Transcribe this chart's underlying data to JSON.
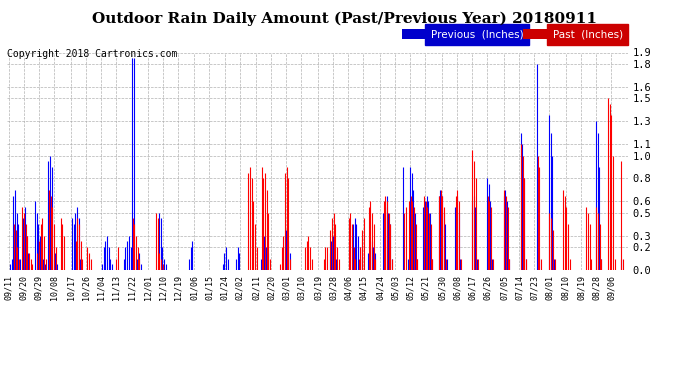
{
  "title": "Outdoor Rain Daily Amount (Past/Previous Year) 20180911",
  "copyright": "Copyright 2018 Cartronics.com",
  "legend_previous": "Previous  (Inches)",
  "legend_past": "Past  (Inches)",
  "legend_prev_bg": "#0000CC",
  "legend_past_bg": "#CC0000",
  "prev_line_color": "#0000FF",
  "past_line_color": "#FF0000",
  "ylim": [
    0.0,
    1.9
  ],
  "yticks": [
    0.0,
    0.2,
    0.3,
    0.5,
    0.6,
    0.8,
    1.0,
    1.1,
    1.3,
    1.5,
    1.6,
    1.8,
    1.9
  ],
  "background_color": "#ffffff",
  "grid_color": "#aaaaaa",
  "title_fontsize": 11,
  "copyright_fontsize": 7,
  "tick_labels": [
    "09/11",
    "09/20",
    "09/29",
    "10/08",
    "10/17",
    "10/26",
    "11/04",
    "11/13",
    "11/22",
    "12/01",
    "12/10",
    "12/19",
    "01/06",
    "01/15",
    "01/24",
    "02/02",
    "02/11",
    "02/20",
    "03/01",
    "03/10",
    "03/19",
    "03/28",
    "04/06",
    "04/15",
    "04/24",
    "05/03",
    "05/12",
    "05/21",
    "05/30",
    "06/08",
    "06/17",
    "06/26",
    "07/05",
    "07/14",
    "07/23",
    "08/01",
    "08/10",
    "08/19",
    "08/28",
    "09/06"
  ],
  "num_days": 366,
  "previous_data": [
    0.0,
    0.05,
    0.1,
    0.65,
    0.7,
    0.5,
    0.4,
    0.1,
    0.0,
    0.45,
    0.55,
    0.3,
    0.15,
    0.0,
    0.0,
    0.0,
    0.6,
    0.5,
    0.4,
    0.3,
    0.2,
    0.1,
    0.05,
    0.0,
    0.95,
    1.0,
    0.9,
    0.1,
    0.15,
    0.05,
    0.0,
    0.0,
    0.0,
    0.0,
    0.0,
    0.0,
    0.0,
    0.0,
    0.45,
    0.4,
    0.5,
    0.55,
    0.45,
    0.1,
    0.0,
    0.0,
    0.0,
    0.0,
    0.0,
    0.0,
    0.0,
    0.0,
    0.0,
    0.0,
    0.0,
    0.0,
    0.05,
    0.2,
    0.25,
    0.3,
    0.2,
    0.1,
    0.05,
    0.0,
    0.0,
    0.0,
    0.0,
    0.0,
    0.0,
    0.1,
    0.2,
    0.25,
    0.3,
    0.2,
    1.85,
    1.85,
    0.0,
    0.1,
    0.15,
    0.05,
    0.0,
    0.0,
    0.0,
    0.0,
    0.0,
    0.0,
    0.0,
    0.0,
    0.0,
    0.0,
    0.5,
    0.45,
    0.2,
    0.1,
    0.05,
    0.0,
    0.0,
    0.0,
    0.0,
    0.0,
    0.0,
    0.0,
    0.0,
    0.0,
    0.0,
    0.0,
    0.0,
    0.0,
    0.1,
    0.2,
    0.25,
    0.0,
    0.0,
    0.0,
    0.0,
    0.0,
    0.0,
    0.0,
    0.0,
    0.0,
    0.0,
    0.0,
    0.0,
    0.0,
    0.0,
    0.0,
    0.0,
    0.0,
    0.05,
    0.15,
    0.2,
    0.1,
    0.0,
    0.0,
    0.0,
    0.0,
    0.1,
    0.2,
    0.15,
    0.0,
    0.0,
    0.0,
    0.0,
    0.0,
    0.0,
    0.0,
    0.0,
    0.0,
    0.0,
    0.0,
    0.0,
    0.1,
    0.2,
    0.3,
    0.2,
    0.15,
    0.0,
    0.0,
    0.0,
    0.0,
    0.0,
    0.0,
    0.0,
    0.0,
    0.0,
    0.3,
    0.35,
    0.25,
    0.15,
    0.0,
    0.0,
    0.0,
    0.0,
    0.0,
    0.0,
    0.0,
    0.0,
    0.0,
    0.0,
    0.0,
    0.0,
    0.0,
    0.0,
    0.0,
    0.0,
    0.0,
    0.0,
    0.0,
    0.0,
    0.0,
    0.0,
    0.0,
    0.15,
    0.25,
    0.3,
    0.2,
    0.1,
    0.0,
    0.0,
    0.0,
    0.0,
    0.0,
    0.0,
    0.0,
    0.0,
    0.0,
    0.4,
    0.45,
    0.4,
    0.3,
    0.2,
    0.1,
    0.0,
    0.0,
    0.0,
    0.15,
    0.2,
    0.25,
    0.2,
    0.15,
    0.0,
    0.0,
    0.0,
    0.0,
    0.5,
    0.55,
    0.65,
    0.5,
    0.4,
    0.1,
    0.0,
    0.0,
    0.0,
    0.0,
    0.0,
    0.0,
    0.9,
    0.0,
    0.0,
    0.1,
    0.9,
    0.85,
    0.7,
    0.5,
    0.1,
    0.0,
    0.0,
    0.0,
    0.55,
    0.6,
    0.65,
    0.6,
    0.5,
    0.1,
    0.0,
    0.0,
    0.0,
    0.65,
    0.7,
    0.65,
    0.5,
    0.4,
    0.1,
    0.0,
    0.0,
    0.0,
    0.0,
    0.55,
    0.65,
    0.5,
    0.1,
    0.0,
    0.0,
    0.0,
    0.0,
    0.0,
    0.0,
    0.6,
    0.65,
    0.55,
    0.1,
    0.0,
    0.0,
    0.0,
    0.0,
    0.0,
    0.8,
    0.75,
    0.6,
    0.1,
    0.0,
    0.0,
    0.0,
    0.0,
    0.0,
    0.0,
    0.65,
    0.7,
    0.6,
    0.1,
    0.0,
    0.0,
    0.0,
    0.0,
    0.0,
    0.0,
    1.2,
    1.1,
    0.8,
    0.1,
    0.0,
    0.0,
    0.0,
    0.0,
    0.0,
    0.0,
    1.8,
    0.1,
    0.0,
    0.0,
    0.0,
    0.0,
    0.0,
    1.35,
    1.2,
    1.0,
    0.1,
    0.0,
    0.0,
    0.0,
    0.0,
    0.0,
    0.0,
    0.0,
    0.0,
    0.0,
    0.0,
    0.0,
    0.0,
    0.0,
    0.0,
    0.0,
    0.0,
    0.0,
    0.0,
    0.0,
    0.0,
    0.0,
    0.0,
    0.0,
    0.0,
    1.3,
    1.2,
    0.9,
    0.1,
    0.0,
    0.0,
    0.0,
    0.0,
    0.0,
    0.0,
    0.0,
    0.0,
    0.0,
    0.0,
    0.0,
    0.1,
    0.0,
    0.0,
    0.0
  ],
  "past_data": [
    0.0,
    0.0,
    0.0,
    0.4,
    0.35,
    0.2,
    0.1,
    0.0,
    0.55,
    0.5,
    0.4,
    0.3,
    0.15,
    0.1,
    0.05,
    0.0,
    0.0,
    0.15,
    0.25,
    0.4,
    0.45,
    0.3,
    0.1,
    0.0,
    0.7,
    0.65,
    0.55,
    0.4,
    0.2,
    0.0,
    0.0,
    0.45,
    0.4,
    0.3,
    0.0,
    0.0,
    0.0,
    0.0,
    0.0,
    0.0,
    0.25,
    0.45,
    0.4,
    0.25,
    0.1,
    0.0,
    0.0,
    0.2,
    0.15,
    0.1,
    0.0,
    0.0,
    0.0,
    0.0,
    0.0,
    0.0,
    0.0,
    0.0,
    0.0,
    0.0,
    0.0,
    0.0,
    0.0,
    0.0,
    0.1,
    0.2,
    0.0,
    0.0,
    0.0,
    0.0,
    0.0,
    0.0,
    0.0,
    0.0,
    0.45,
    0.4,
    0.3,
    0.2,
    0.1,
    0.0,
    0.0,
    0.0,
    0.0,
    0.0,
    0.0,
    0.0,
    0.0,
    0.0,
    0.5,
    0.45,
    0.15,
    0.1,
    0.05,
    0.0,
    0.0,
    0.0,
    0.0,
    0.0,
    0.0,
    0.0,
    0.0,
    0.0,
    0.0,
    0.0,
    0.0,
    0.0,
    0.0,
    0.0,
    0.0,
    0.0,
    0.0,
    0.0,
    0.0,
    0.0,
    0.0,
    0.0,
    0.0,
    0.0,
    0.0,
    0.0,
    0.0,
    0.0,
    0.0,
    0.0,
    0.0,
    0.0,
    0.0,
    0.0,
    0.0,
    0.0,
    0.0,
    0.0,
    0.0,
    0.0,
    0.0,
    0.0,
    0.0,
    0.0,
    0.0,
    0.0,
    0.0,
    0.0,
    0.0,
    0.85,
    0.9,
    0.8,
    0.6,
    0.4,
    0.2,
    0.0,
    0.0,
    0.9,
    0.8,
    0.85,
    0.7,
    0.5,
    0.1,
    0.0,
    0.0,
    0.0,
    0.0,
    0.0,
    0.05,
    0.2,
    0.3,
    0.85,
    0.9,
    0.8,
    0.1,
    0.0,
    0.0,
    0.0,
    0.0,
    0.0,
    0.0,
    0.0,
    0.0,
    0.2,
    0.25,
    0.3,
    0.2,
    0.1,
    0.0,
    0.0,
    0.0,
    0.0,
    0.0,
    0.0,
    0.1,
    0.2,
    0.2,
    0.0,
    0.35,
    0.45,
    0.5,
    0.4,
    0.2,
    0.1,
    0.0,
    0.0,
    0.0,
    0.0,
    0.0,
    0.45,
    0.5,
    0.4,
    0.2,
    0.1,
    0.0,
    0.1,
    0.2,
    0.35,
    0.45,
    0.0,
    0.0,
    0.55,
    0.6,
    0.5,
    0.4,
    0.1,
    0.0,
    0.0,
    0.0,
    0.0,
    0.6,
    0.65,
    0.6,
    0.5,
    0.4,
    0.1,
    0.0,
    0.0,
    0.0,
    0.0,
    0.0,
    0.0,
    0.5,
    0.55,
    0.0,
    0.6,
    0.65,
    0.6,
    0.55,
    0.4,
    0.1,
    0.0,
    0.0,
    0.0,
    0.65,
    0.6,
    0.55,
    0.5,
    0.4,
    0.1,
    0.0,
    0.0,
    0.0,
    0.65,
    0.7,
    0.65,
    0.55,
    0.1,
    0.0,
    0.0,
    0.0,
    0.0,
    0.0,
    0.65,
    0.7,
    0.6,
    0.1,
    0.0,
    0.0,
    0.0,
    0.0,
    0.0,
    0.0,
    1.05,
    0.95,
    0.8,
    0.1,
    0.0,
    0.0,
    0.0,
    0.0,
    0.0,
    0.65,
    0.6,
    0.55,
    0.1,
    0.0,
    0.0,
    0.0,
    0.0,
    0.0,
    0.0,
    0.7,
    0.65,
    0.55,
    0.1,
    0.0,
    0.0,
    0.0,
    0.0,
    0.0,
    0.0,
    1.1,
    1.0,
    0.8,
    0.1,
    0.0,
    0.0,
    0.0,
    0.0,
    0.0,
    0.0,
    1.0,
    0.9,
    0.1,
    0.0,
    0.0,
    0.0,
    0.0,
    0.5,
    0.45,
    0.35,
    0.1,
    0.0,
    0.0,
    0.0,
    0.0,
    0.7,
    0.65,
    0.55,
    0.4,
    0.1,
    0.0,
    0.0,
    0.0,
    0.0,
    0.0,
    0.0,
    0.0,
    0.0,
    0.0,
    0.55,
    0.5,
    0.4,
    0.1,
    0.0,
    0.0,
    0.55,
    0.5,
    0.4,
    0.1,
    0.0,
    0.0,
    0.0,
    1.5,
    1.45,
    1.35,
    1.0,
    0.1,
    0.0,
    0.0,
    0.0,
    0.95,
    0.1,
    0.0,
    0.0
  ]
}
